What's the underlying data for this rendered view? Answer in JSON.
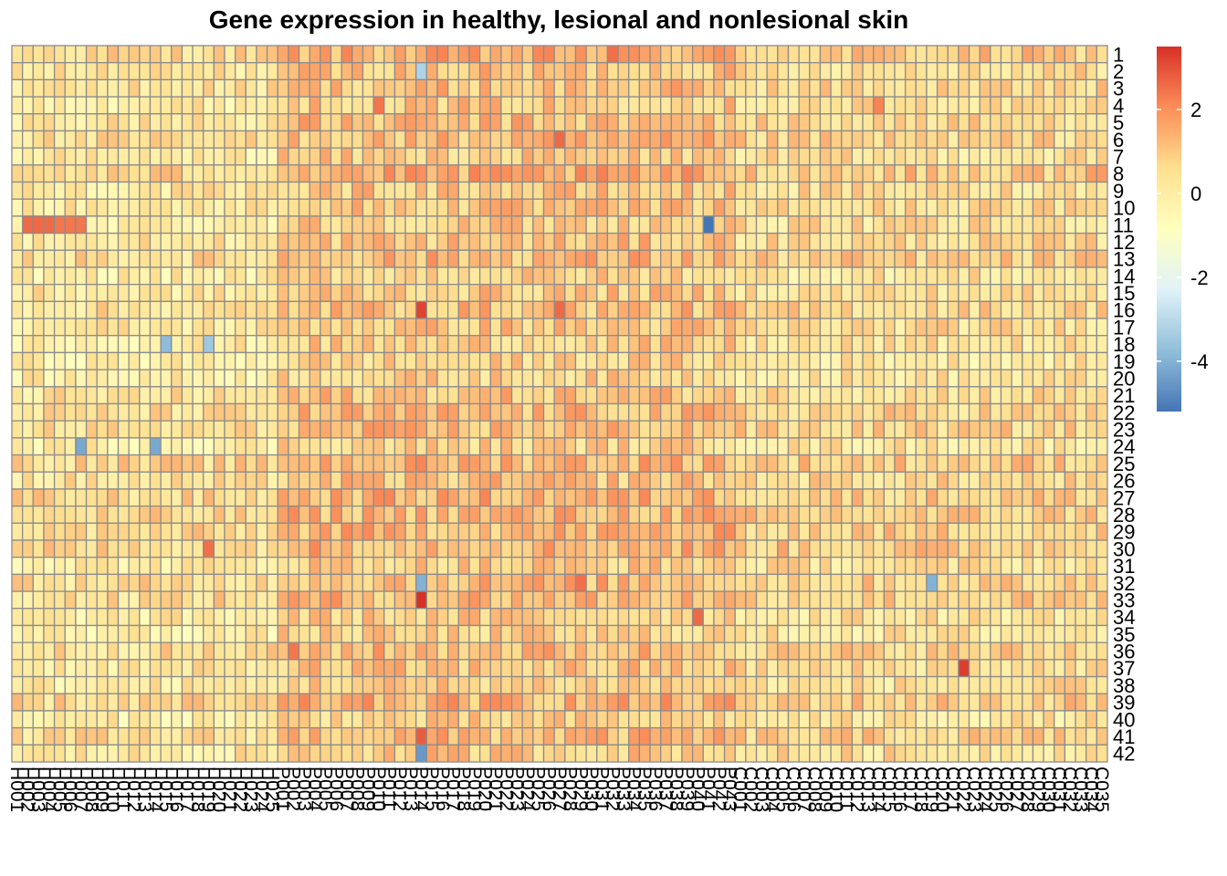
{
  "chart_data": {
    "type": "heatmap",
    "title": "Gene expression in healthy, lesional and nonlesional skin",
    "xlabel": "",
    "ylabel": "",
    "grid": true,
    "rows": [
      "1",
      "2",
      "3",
      "4",
      "5",
      "6",
      "7",
      "8",
      "9",
      "10",
      "11",
      "12",
      "13",
      "14",
      "15",
      "16",
      "17",
      "18",
      "19",
      "20",
      "21",
      "22",
      "23",
      "24",
      "25",
      "26",
      "27",
      "28",
      "29",
      "30",
      "31",
      "32",
      "33",
      "34",
      "35",
      "36",
      "37",
      "38",
      "39",
      "40",
      "41",
      "42"
    ],
    "column_groups": [
      {
        "prefix": "H",
        "from": 1,
        "to": 25,
        "digits": 3
      },
      {
        "prefix": "P",
        "from": 1,
        "to": 43,
        "digits": 3
      },
      {
        "prefix": "C",
        "from": 1,
        "to": 35,
        "digits": 3
      }
    ],
    "colorbar": {
      "min": -5.2,
      "max": 3.5,
      "ticks": [
        2,
        0,
        -2,
        -4
      ],
      "palette": [
        "#4575B4",
        "#91BFDB",
        "#E0F3F8",
        "#FFFFBF",
        "#FEE090",
        "#FC8D59",
        "#D73027"
      ]
    },
    "group_levels": {
      "H": 0.25,
      "P": 1.05,
      "C": 0.55
    },
    "highlights": [
      {
        "row": "1",
        "col": "P032",
        "value": 2.5
      },
      {
        "row": "1",
        "col": "P029",
        "value": 2.0
      },
      {
        "row": "2",
        "col": "P014",
        "value": -3.2
      },
      {
        "row": "4",
        "col": "P010",
        "value": 2.4
      },
      {
        "row": "4",
        "col": "C014",
        "value": 2.2
      },
      {
        "row": "6",
        "col": "P027",
        "value": 2.6
      },
      {
        "row": "8",
        "col": "C034",
        "value": 1.8
      },
      {
        "row": "8",
        "col": "C035",
        "value": 1.8
      },
      {
        "row": "11",
        "col": "H002",
        "value": 2.6
      },
      {
        "row": "11",
        "col": "H003",
        "value": 2.6
      },
      {
        "row": "11",
        "col": "H004",
        "value": 2.6
      },
      {
        "row": "11",
        "col": "H005",
        "value": 2.4
      },
      {
        "row": "11",
        "col": "H006",
        "value": 2.4
      },
      {
        "row": "11",
        "col": "H007",
        "value": 2.4
      },
      {
        "row": "11",
        "col": "P041",
        "value": -5.2
      },
      {
        "row": "16",
        "col": "P014",
        "value": 3.2
      },
      {
        "row": "16",
        "col": "P027",
        "value": 2.6
      },
      {
        "row": "18",
        "col": "H015",
        "value": -3.8
      },
      {
        "row": "18",
        "col": "H019",
        "value": -3.5
      },
      {
        "row": "24",
        "col": "H007",
        "value": -4.2
      },
      {
        "row": "24",
        "col": "H014",
        "value": -4.2
      },
      {
        "row": "30",
        "col": "H019",
        "value": 2.5
      },
      {
        "row": "32",
        "col": "P014",
        "value": -4.0
      },
      {
        "row": "32",
        "col": "C019",
        "value": -4.0
      },
      {
        "row": "32",
        "col": "P029",
        "value": 2.5
      },
      {
        "row": "33",
        "col": "P014",
        "value": 3.5
      },
      {
        "row": "34",
        "col": "P040",
        "value": 2.6
      },
      {
        "row": "36",
        "col": "P002",
        "value": 2.4
      },
      {
        "row": "37",
        "col": "C022",
        "value": 3.3
      },
      {
        "row": "41",
        "col": "P014",
        "value": 2.8
      },
      {
        "row": "42",
        "col": "P014",
        "value": -4.5
      }
    ]
  }
}
